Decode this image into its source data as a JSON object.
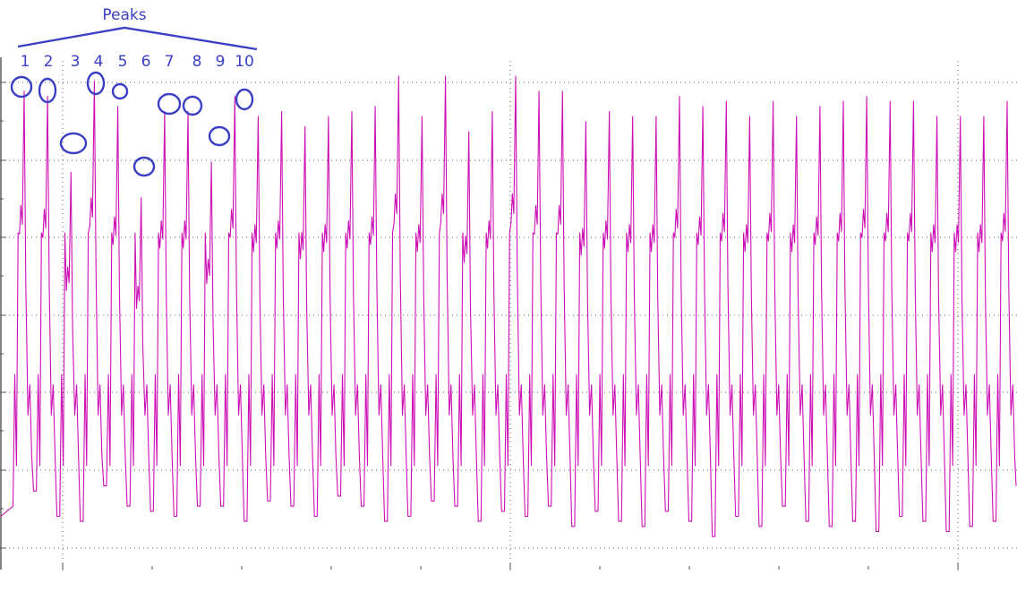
{
  "colors": {
    "signal": "#cc0fb4",
    "annotation": "#3a3fc4",
    "background": "#ffffff"
  },
  "chart_data": {
    "type": "line",
    "title": "",
    "xlabel": "",
    "ylabel": "",
    "grid": true,
    "legend": "none",
    "ylim": [
      0,
      1
    ],
    "xlim": [
      0,
      1
    ],
    "series": [
      {
        "name": "",
        "shape": "periodic waveform with tall sharp peaks and a secondary notch on each rising edge",
        "cycles": 43,
        "peaks": [
          0.94,
          0.93,
          0.78,
          0.96,
          0.91,
          0.73,
          0.9,
          0.9,
          0.8,
          0.93,
          0.89,
          0.9,
          0.87,
          0.89,
          0.9,
          0.91,
          0.97,
          0.89,
          0.97,
          0.86,
          0.9,
          0.97,
          0.94,
          0.94,
          0.88,
          0.9,
          0.89,
          0.89,
          0.93,
          0.91,
          0.92,
          0.89,
          0.92,
          0.89,
          0.91,
          0.92,
          0.93,
          0.92,
          0.92,
          0.89,
          0.89,
          0.89,
          0.92
        ],
        "troughs": [
          0.15,
          0.1,
          0.09,
          0.16,
          0.12,
          0.11,
          0.1,
          0.12,
          0.12,
          0.09,
          0.13,
          0.12,
          0.1,
          0.14,
          0.12,
          0.09,
          0.1,
          0.13,
          0.12,
          0.09,
          0.11,
          0.1,
          0.12,
          0.08,
          0.11,
          0.09,
          0.08,
          0.11,
          0.09,
          0.06,
          0.1,
          0.08,
          0.12,
          0.09,
          0.08,
          0.09,
          0.07,
          0.1,
          0.09,
          0.07,
          0.08,
          0.09,
          0.1
        ]
      }
    ],
    "annotations": {
      "title": "Peaks",
      "labels": [
        "1",
        "2",
        "3",
        "4",
        "5",
        "6",
        "7",
        "8",
        "9",
        "10"
      ]
    }
  }
}
